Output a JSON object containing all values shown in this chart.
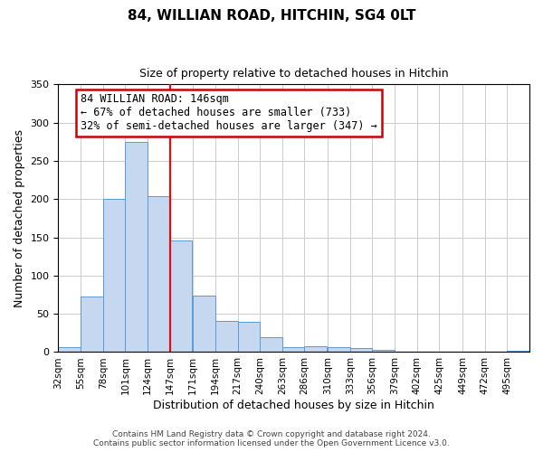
{
  "title_line1": "84, WILLIAN ROAD, HITCHIN, SG4 0LT",
  "title_line2": "Size of property relative to detached houses in Hitchin",
  "xlabel": "Distribution of detached houses by size in Hitchin",
  "ylabel": "Number of detached properties",
  "bin_labels": [
    "32sqm",
    "55sqm",
    "78sqm",
    "101sqm",
    "124sqm",
    "147sqm",
    "171sqm",
    "194sqm",
    "217sqm",
    "240sqm",
    "263sqm",
    "286sqm",
    "310sqm",
    "333sqm",
    "356sqm",
    "379sqm",
    "402sqm",
    "425sqm",
    "449sqm",
    "472sqm",
    "495sqm"
  ],
  "bin_edges": [
    32,
    55,
    78,
    101,
    124,
    147,
    171,
    194,
    217,
    240,
    263,
    286,
    310,
    333,
    356,
    379,
    402,
    425,
    449,
    472,
    495
  ],
  "bar_values": [
    7,
    73,
    200,
    275,
    204,
    146,
    74,
    41,
    40,
    20,
    6,
    8,
    6,
    5,
    3,
    1,
    1,
    0,
    1,
    0,
    2
  ],
  "bar_color": "#c5d8f0",
  "bar_edge_color": "#5b9bd5",
  "red_line_x": 147,
  "annotation_title": "84 WILLIAN ROAD: 146sqm",
  "annotation_line1": "← 67% of detached houses are smaller (733)",
  "annotation_line2": "32% of semi-detached houses are larger (347) →",
  "annotation_box_color": "#ffffff",
  "annotation_box_edge": "#cc0000",
  "ylim": [
    0,
    350
  ],
  "yticks": [
    0,
    50,
    100,
    150,
    200,
    250,
    300,
    350
  ],
  "footer_line1": "Contains HM Land Registry data © Crown copyright and database right 2024.",
  "footer_line2": "Contains public sector information licensed under the Open Government Licence v3.0.",
  "background_color": "#ffffff",
  "grid_color": "#cccccc"
}
